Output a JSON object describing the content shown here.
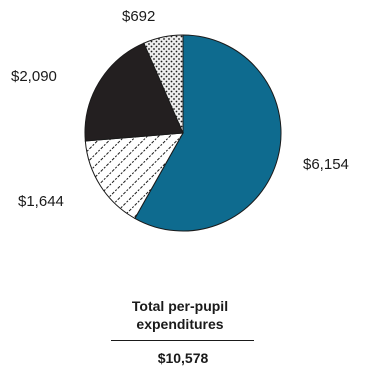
{
  "chart_data": {
    "type": "pie",
    "slices": [
      {
        "label": "$6,154",
        "value": 6154,
        "pattern": "solid",
        "color": "#0e6b8f"
      },
      {
        "label": "$1,644",
        "value": 1644,
        "pattern": "diagonal-hatch",
        "color": "#ffffff"
      },
      {
        "label": "$2,090",
        "value": 2090,
        "pattern": "solid",
        "color": "#231f20"
      },
      {
        "label": "$692",
        "value": 692,
        "pattern": "dots",
        "color": "#e8e8e8"
      }
    ],
    "total_label": "Total per-pupil expenditures",
    "total_value": "$10,578"
  }
}
